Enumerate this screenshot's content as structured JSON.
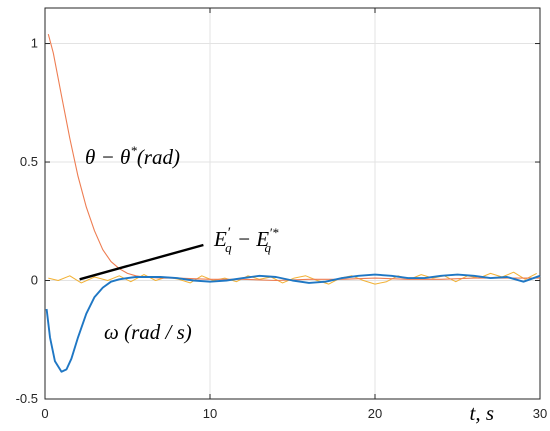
{
  "chart_data": {
    "type": "line",
    "title": "",
    "xlabel": "t, s",
    "ylabel": "",
    "xlim": [
      0,
      30
    ],
    "ylim": [
      -0.5,
      1.15
    ],
    "grid": true,
    "x_ticks": [
      0,
      10,
      20,
      30
    ],
    "y_ticks": [
      -0.5,
      0,
      0.5,
      1
    ],
    "x_tick_labels": [
      "0",
      "10",
      "20",
      "30"
    ],
    "y_tick_labels": [
      "-0.5",
      "0",
      "0.5",
      "1"
    ],
    "series": [
      {
        "name": "θ − θ* (rad)",
        "color": "#ee7d52",
        "x": [
          0.2,
          0.5,
          1.0,
          1.5,
          2.0,
          2.5,
          3.0,
          3.5,
          4.0,
          4.5,
          5.0,
          5.5,
          6.0,
          7.0,
          8.0,
          10.0,
          12.0,
          14.0,
          16.0,
          18.0,
          20.0,
          22.0,
          24.0,
          26.0,
          28.0,
          30.0
        ],
        "y": [
          1.04,
          0.96,
          0.78,
          0.6,
          0.44,
          0.31,
          0.21,
          0.13,
          0.08,
          0.05,
          0.03,
          0.02,
          0.015,
          0.01,
          0.01,
          0.005,
          0.005,
          0.0,
          0.005,
          0.005,
          0.01,
          0.005,
          0.005,
          0.01,
          0.01,
          0.01
        ]
      },
      {
        "name": "ω (rad / s)",
        "color": "#1f77c4",
        "x": [
          0.1,
          0.3,
          0.6,
          1.0,
          1.3,
          1.6,
          2.0,
          2.5,
          3.0,
          3.5,
          4.0,
          4.5,
          5.0,
          5.5,
          6.0,
          7.0,
          8.0,
          9.0,
          10.0,
          11.0,
          12.0,
          13.0,
          14.0,
          15.0,
          16.0,
          17.0,
          18.0,
          19.0,
          20.0,
          21.0,
          22.0,
          23.0,
          24.0,
          25.0,
          26.0,
          27.0,
          28.0,
          29.0,
          30.0
        ],
        "y": [
          -0.12,
          -0.24,
          -0.34,
          -0.385,
          -0.375,
          -0.33,
          -0.24,
          -0.14,
          -0.07,
          -0.03,
          -0.005,
          0.005,
          0.01,
          0.015,
          0.015,
          0.015,
          0.01,
          0.0,
          -0.005,
          0.0,
          0.01,
          0.02,
          0.015,
          0.0,
          -0.01,
          -0.005,
          0.01,
          0.02,
          0.025,
          0.02,
          0.01,
          0.01,
          0.02,
          0.025,
          0.02,
          0.01,
          0.015,
          -0.005,
          0.02
        ]
      },
      {
        "name": "E'q − E'q*",
        "color": "#f2b134",
        "x": [
          0.2,
          0.8,
          1.5,
          2.2,
          3.0,
          3.8,
          4.5,
          5.2,
          6.0,
          6.7,
          7.4,
          8.1,
          8.8,
          9.5,
          10.2,
          10.9,
          11.6,
          12.3,
          13.0,
          13.7,
          14.4,
          15.1,
          15.8,
          16.5,
          17.2,
          17.9,
          18.6,
          19.3,
          20.0,
          20.7,
          21.4,
          22.1,
          22.8,
          23.5,
          24.2,
          24.9,
          25.6,
          26.3,
          27.0,
          27.7,
          28.4,
          29.1,
          29.8
        ],
        "y": [
          0.01,
          0.0,
          0.02,
          -0.01,
          0.015,
          0.0,
          0.02,
          -0.005,
          0.025,
          0.0,
          0.015,
          0.005,
          -0.01,
          0.02,
          0.0,
          0.01,
          -0.005,
          0.02,
          0.005,
          0.015,
          -0.01,
          0.01,
          0.02,
          0.0,
          -0.015,
          0.01,
          0.02,
          0.0,
          -0.015,
          -0.005,
          0.02,
          0.005,
          0.025,
          0.01,
          0.02,
          -0.005,
          0.02,
          0.01,
          0.03,
          0.015,
          0.035,
          0.005,
          0.03
        ]
      }
    ],
    "annotations": [
      {
        "id": "theta",
        "text_main": "θ − θ",
        "text_sup": "*",
        "text_tail": "(rad)"
      },
      {
        "id": "eq",
        "text_main": "E",
        "text_sub": "q",
        "text_prime": "′",
        "text_mid": " − E",
        "text_sub2": "q",
        "text_sup2": "′*"
      },
      {
        "id": "omega",
        "text_main": "ω (rad / s)"
      }
    ],
    "eq_pointer": {
      "x": [
        2.1,
        9.6
      ],
      "y": [
        0.005,
        0.15
      ]
    }
  }
}
